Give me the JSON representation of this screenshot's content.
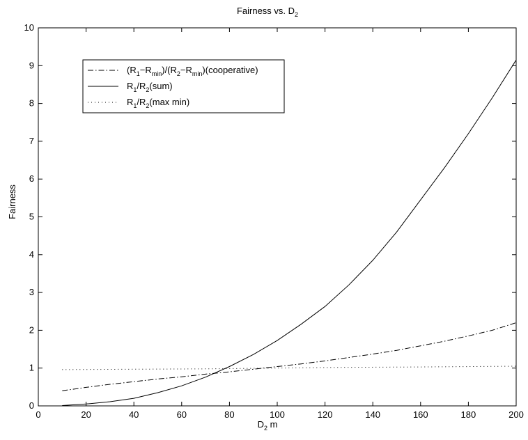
{
  "chart_data": {
    "type": "line",
    "title": {
      "main": "Fairness vs. D",
      "sub": "2"
    },
    "xlabel": {
      "pre": "D",
      "sub": "2",
      "post": " m"
    },
    "ylabel": "Fairness",
    "xlim": [
      0,
      200
    ],
    "ylim": [
      0,
      10
    ],
    "xticks": [
      0,
      20,
      40,
      60,
      80,
      100,
      120,
      140,
      160,
      180,
      200
    ],
    "yticks": [
      0,
      1,
      2,
      3,
      4,
      5,
      6,
      7,
      8,
      9,
      10
    ],
    "grid": false,
    "legend_position": "top-left",
    "series": [
      {
        "name": "(R1−Rmin)/(R2−Rmin)(cooperative)",
        "label_parts": [
          {
            "t": "(R"
          },
          {
            "t": "1",
            "sub": true
          },
          {
            "t": "−R"
          },
          {
            "t": "min",
            "sub": true
          },
          {
            "t": ")/(R"
          },
          {
            "t": "2",
            "sub": true
          },
          {
            "t": "−R"
          },
          {
            "t": "min",
            "sub": true
          },
          {
            "t": ")(cooperative)"
          }
        ],
        "style": "dashdot",
        "color": "#000000",
        "x": [
          10,
          20,
          30,
          40,
          50,
          60,
          70,
          80,
          90,
          100,
          110,
          120,
          130,
          140,
          150,
          160,
          170,
          180,
          190,
          200
        ],
        "y": [
          0.4,
          0.49,
          0.57,
          0.64,
          0.71,
          0.77,
          0.84,
          0.9,
          0.97,
          1.04,
          1.11,
          1.19,
          1.28,
          1.37,
          1.47,
          1.59,
          1.71,
          1.85,
          2.0,
          2.2
        ]
      },
      {
        "name": "R1/R2(sum)",
        "label_parts": [
          {
            "t": "R"
          },
          {
            "t": "1",
            "sub": true
          },
          {
            "t": "/R"
          },
          {
            "t": "2",
            "sub": true
          },
          {
            "t": "(sum)"
          }
        ],
        "style": "solid",
        "color": "#000000",
        "x": [
          10,
          20,
          30,
          40,
          50,
          60,
          70,
          80,
          90,
          100,
          110,
          120,
          130,
          140,
          150,
          160,
          170,
          180,
          190,
          200
        ],
        "y": [
          0.01,
          0.05,
          0.11,
          0.2,
          0.35,
          0.53,
          0.76,
          1.04,
          1.36,
          1.73,
          2.16,
          2.63,
          3.2,
          3.85,
          4.6,
          5.45,
          6.3,
          7.2,
          8.15,
          9.15
        ]
      },
      {
        "name": "R1/R2(max min)",
        "label_parts": [
          {
            "t": "R"
          },
          {
            "t": "1",
            "sub": true
          },
          {
            "t": "/R"
          },
          {
            "t": "2",
            "sub": true
          },
          {
            "t": "(max min)"
          }
        ],
        "style": "dotted",
        "color": "#000000",
        "x": [
          10,
          40,
          70,
          100,
          130,
          160,
          200
        ],
        "y": [
          0.96,
          0.97,
          0.98,
          1.0,
          1.02,
          1.03,
          1.05
        ]
      }
    ]
  }
}
